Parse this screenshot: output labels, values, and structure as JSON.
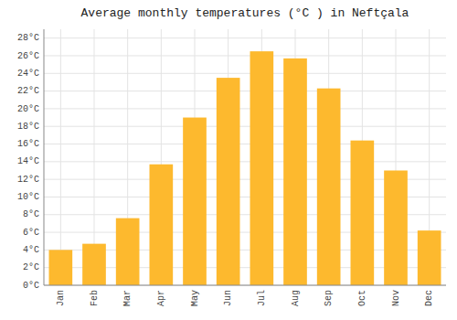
{
  "chart_data": {
    "type": "bar",
    "title": "Average monthly temperatures (°C ) in Neftçala",
    "categories": [
      "Jan",
      "Feb",
      "Mar",
      "Apr",
      "May",
      "Jun",
      "Jul",
      "Aug",
      "Sep",
      "Oct",
      "Nov",
      "Dec"
    ],
    "values": [
      4.0,
      4.7,
      7.6,
      13.7,
      19.0,
      23.5,
      26.5,
      25.7,
      22.3,
      16.4,
      13.0,
      6.2
    ],
    "color": "#FDB92E",
    "ylim": [
      0,
      29
    ],
    "yticks": [
      {
        "value": 0,
        "label": "0°C"
      },
      {
        "value": 2,
        "label": "2°C"
      },
      {
        "value": 4,
        "label": "4°C"
      },
      {
        "value": 6,
        "label": "6°C"
      },
      {
        "value": 8,
        "label": "8°C"
      },
      {
        "value": 10,
        "label": "10°C"
      },
      {
        "value": 12,
        "label": "12°C"
      },
      {
        "value": 14,
        "label": "14°C"
      },
      {
        "value": 16,
        "label": "16°C"
      },
      {
        "value": 18,
        "label": "18°C"
      },
      {
        "value": 20,
        "label": "20°C"
      },
      {
        "value": 22,
        "label": "22°C"
      },
      {
        "value": 24,
        "label": "24°C"
      },
      {
        "value": 26,
        "label": "26°C"
      },
      {
        "value": 28,
        "label": "28°C"
      }
    ],
    "grid": true
  }
}
